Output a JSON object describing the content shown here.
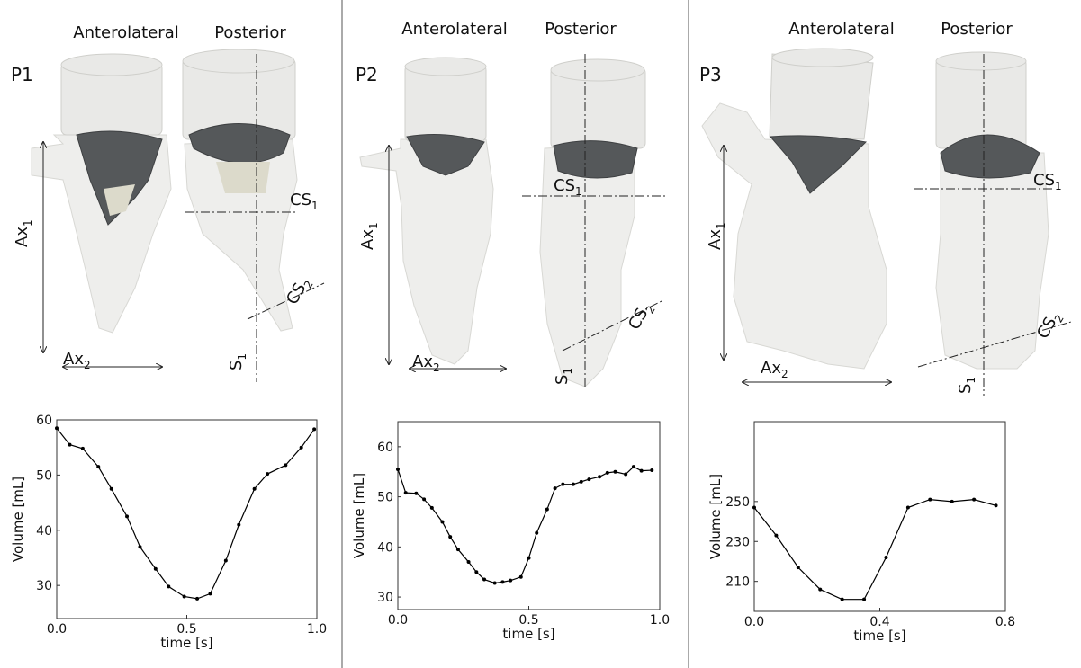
{
  "panels": [
    {
      "label": "P1",
      "views": [
        "Anterolateral",
        "Posterior"
      ],
      "annotations": [
        {
          "base": "Ax",
          "sub": "1"
        },
        {
          "base": "Ax",
          "sub": "2"
        },
        {
          "base": "CS",
          "sub": "1"
        },
        {
          "base": "CS",
          "sub": "2"
        },
        {
          "base": "S",
          "sub": "1"
        }
      ]
    },
    {
      "label": "P2",
      "views": [
        "Anterolateral",
        "Posterior"
      ],
      "annotations": [
        {
          "base": "Ax",
          "sub": "1"
        },
        {
          "base": "Ax",
          "sub": "2"
        },
        {
          "base": "CS",
          "sub": "1"
        },
        {
          "base": "CS",
          "sub": "2"
        },
        {
          "base": "S",
          "sub": "1"
        }
      ]
    },
    {
      "label": "P3",
      "views": [
        "Anterolateral",
        "Posterior"
      ],
      "annotations": [
        {
          "base": "Ax",
          "sub": "1"
        },
        {
          "base": "Ax",
          "sub": "2"
        },
        {
          "base": "CS",
          "sub": "1"
        },
        {
          "base": "CS",
          "sub": "2"
        },
        {
          "base": "S",
          "sub": "1"
        }
      ]
    }
  ],
  "chart_data": [
    {
      "type": "line",
      "x_label": "time [s]",
      "y_label": "Volume [mL]",
      "color": "#000000",
      "x": [
        0.0,
        0.05,
        0.1,
        0.16,
        0.21,
        0.27,
        0.32,
        0.38,
        0.43,
        0.49,
        0.54,
        0.59,
        0.65,
        0.7,
        0.76,
        0.81,
        0.88,
        0.94,
        0.99
      ],
      "values": [
        58.5,
        55.5,
        54.8,
        51.5,
        47.5,
        42.5,
        37,
        33,
        29.8,
        28,
        27.6,
        28.5,
        34.5,
        41,
        47.5,
        50.2,
        51.8,
        55,
        58.3
      ],
      "xlim": [
        0,
        1
      ],
      "ylim": [
        24,
        60
      ],
      "xticks": [
        {
          "value": 0,
          "label": "0.0"
        },
        0.5,
        {
          "value": 1,
          "label": "1.0"
        }
      ],
      "yticks": [
        30,
        40,
        50,
        60
      ]
    },
    {
      "type": "line",
      "x_label": "time [s]",
      "y_label": "Volume [mL]",
      "color": "#000000",
      "x": [
        0.0,
        0.03,
        0.07,
        0.1,
        0.13,
        0.17,
        0.2,
        0.23,
        0.27,
        0.3,
        0.33,
        0.37,
        0.4,
        0.43,
        0.47,
        0.5,
        0.53,
        0.57,
        0.6,
        0.63,
        0.67,
        0.7,
        0.73,
        0.77,
        0.8,
        0.83,
        0.87,
        0.9,
        0.93,
        0.97
      ],
      "values": [
        55.5,
        50.8,
        50.7,
        49.5,
        47.8,
        45,
        42,
        39.5,
        37,
        35,
        33.5,
        32.8,
        33,
        33.3,
        34,
        37.8,
        42.8,
        47.5,
        51.7,
        52.5,
        52.5,
        53,
        53.5,
        54,
        54.8,
        55,
        54.5,
        56,
        55.2,
        55.3
      ],
      "xlim": [
        0,
        1
      ],
      "ylim": [
        27.5,
        65
      ],
      "xticks": [
        {
          "value": 0,
          "label": "0.0"
        },
        0.5,
        {
          "value": 1,
          "label": "1.0"
        }
      ],
      "yticks": [
        30,
        40,
        50,
        60
      ]
    },
    {
      "type": "line",
      "x_label": "time [s]",
      "y_label": "Volume [mL]",
      "color": "#000000",
      "x": [
        0.0,
        0.07,
        0.14,
        0.21,
        0.28,
        0.35,
        0.42,
        0.49,
        0.56,
        0.63,
        0.7,
        0.77
      ],
      "values": [
        247,
        233,
        217,
        206,
        201,
        201,
        222,
        247,
        251,
        250,
        251,
        248
      ],
      "xlim": [
        0,
        0.8
      ],
      "ylim": [
        195,
        290
      ],
      "xticks": [
        {
          "value": 0,
          "label": "0.0"
        },
        0.4,
        0.8
      ],
      "yticks": [
        210,
        230,
        250
      ]
    }
  ]
}
